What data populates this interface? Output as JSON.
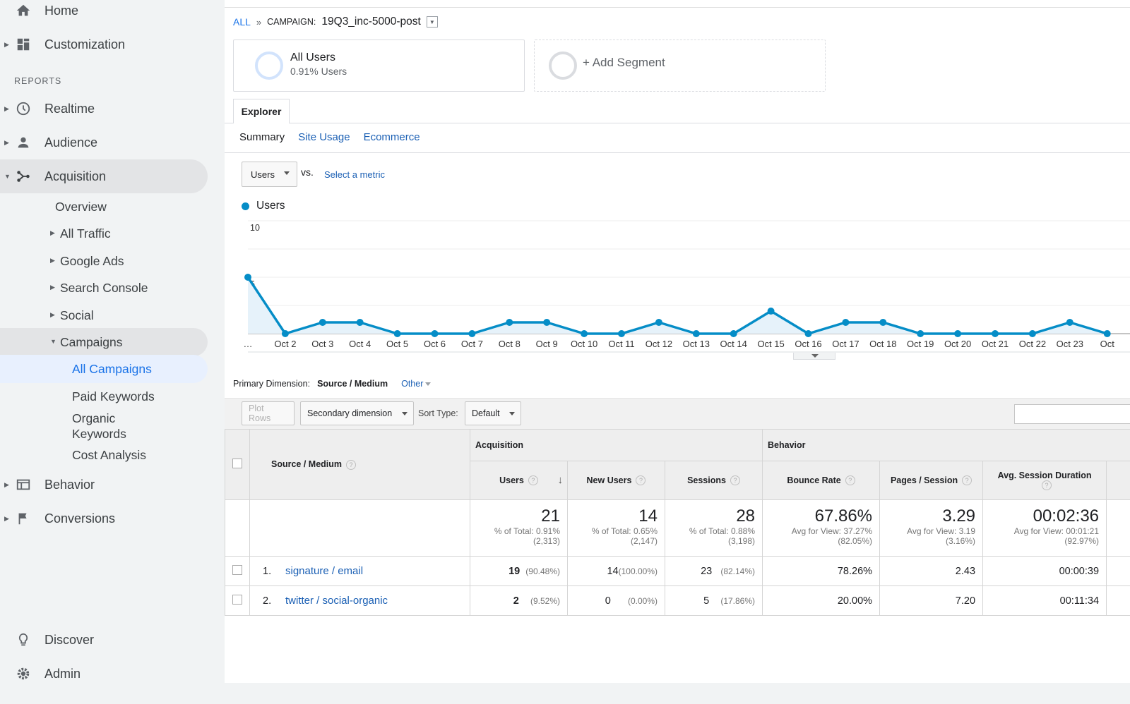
{
  "sidebar": {
    "home": "Home",
    "customization": "Customization",
    "reports_label": "REPORTS",
    "realtime": "Realtime",
    "audience": "Audience",
    "acquisition": "Acquisition",
    "acq_items": {
      "overview": "Overview",
      "all_traffic": "All Traffic",
      "google_ads": "Google Ads",
      "search_console": "Search Console",
      "social": "Social",
      "campaigns": "Campaigns"
    },
    "campaign_items": {
      "all_campaigns": "All Campaigns",
      "paid_keywords": "Paid Keywords",
      "organic_keywords_1": "Organic",
      "organic_keywords_2": "Keywords",
      "cost_analysis": "Cost Analysis"
    },
    "behavior": "Behavior",
    "conversions": "Conversions",
    "discover": "Discover",
    "admin": "Admin"
  },
  "breadcrumb": {
    "all": "ALL",
    "sep": "»",
    "campaign_label": "CAMPAIGN:",
    "campaign_value": "19Q3_inc-5000-post"
  },
  "segments": {
    "seg1_title": "All Users",
    "seg1_sub": "0.91% Users",
    "add": "+ Add Segment"
  },
  "tabs": {
    "explorer": "Explorer",
    "summary": "Summary",
    "site_usage": "Site Usage",
    "ecommerce": "Ecommerce"
  },
  "metric": {
    "selected": "Users",
    "vs": "vs.",
    "select_metric": "Select a metric"
  },
  "chart_data": {
    "type": "area",
    "legend": [
      "Users"
    ],
    "series": [
      {
        "name": "Users",
        "values": [
          5,
          0,
          1,
          1,
          0,
          0,
          0,
          1,
          1,
          0,
          0,
          1,
          0,
          0,
          2,
          0,
          1,
          1,
          0,
          0,
          0,
          0,
          1,
          0
        ]
      }
    ],
    "x": [
      "…",
      "Oct 2",
      "Oct 3",
      "Oct 4",
      "Oct 5",
      "Oct 6",
      "Oct 7",
      "Oct 8",
      "Oct 9",
      "Oct 10",
      "Oct 11",
      "Oct 12",
      "Oct 13",
      "Oct 14",
      "Oct 15",
      "Oct 16",
      "Oct 17",
      "Oct 18",
      "Oct 19",
      "Oct 20",
      "Oct 21",
      "Oct 22",
      "Oct 23",
      "Oct"
    ],
    "y_ticks": [
      "10",
      "5"
    ],
    "ylim": [
      0,
      10
    ],
    "grid": true,
    "color": "#058dc7"
  },
  "table_controls": {
    "primary_label": "Primary Dimension:",
    "primary_value": "Source / Medium",
    "other": "Other",
    "plot_rows": "Plot Rows",
    "secondary": "Secondary dimension",
    "sort_type_label": "Sort Type:",
    "sort_type_value": "Default"
  },
  "table": {
    "dim_header": "Source / Medium",
    "group_acquisition": "Acquisition",
    "group_behavior": "Behavior",
    "columns": [
      "Users",
      "New Users",
      "Sessions",
      "Bounce Rate",
      "Pages / Session",
      "Avg. Session Duration"
    ],
    "totals": [
      {
        "big": "21",
        "l1": "% of Total: 0.91%",
        "l2": "(2,313)"
      },
      {
        "big": "14",
        "l1": "% of Total: 0.65%",
        "l2": "(2,147)"
      },
      {
        "big": "28",
        "l1": "% of Total: 0.88%",
        "l2": "(3,198)"
      },
      {
        "big": "67.86%",
        "l1": "Avg for View: 37.27%",
        "l2": "(82.05%)"
      },
      {
        "big": "3.29",
        "l1": "Avg for View: 3.19",
        "l2": "(3.16%)"
      },
      {
        "big": "00:02:36",
        "l1": "Avg for View: 00:01:21",
        "l2": "(92.97%)"
      }
    ],
    "rows": [
      {
        "num": "1.",
        "source": "signature / email",
        "users": "19",
        "users_pct": "(90.48%)",
        "new_users": "14",
        "new_users_pct": "(100.00%)",
        "sessions": "23",
        "sessions_pct": "(82.14%)",
        "bounce": "78.26%",
        "pages": "2.43",
        "duration": "00:00:39"
      },
      {
        "num": "2.",
        "source": "twitter / social-organic",
        "users": "2",
        "users_pct": "(9.52%)",
        "new_users": "0",
        "new_users_pct": "(0.00%)",
        "sessions": "5",
        "sessions_pct": "(17.86%)",
        "bounce": "20.00%",
        "pages": "7.20",
        "duration": "00:11:34"
      }
    ]
  }
}
